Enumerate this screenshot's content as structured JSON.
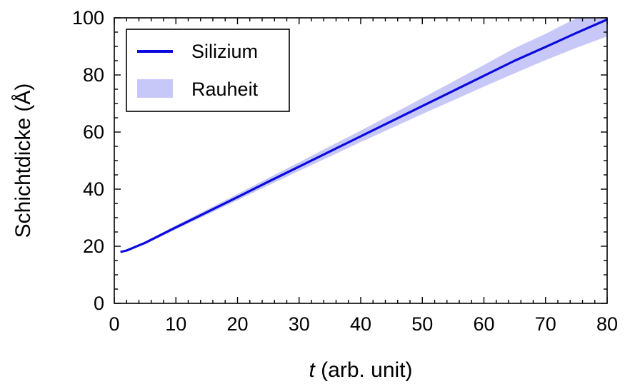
{
  "chart_data": {
    "type": "line",
    "title": "",
    "xlabel_var": "t",
    "xlabel_rest": " (arb. unit)",
    "ylabel": "Schichtdicke (Å)",
    "xlim": [
      0,
      80
    ],
    "ylim": [
      0,
      100
    ],
    "xticks": [
      0,
      10,
      20,
      30,
      40,
      50,
      60,
      70,
      80
    ],
    "yticks": [
      0,
      20,
      40,
      60,
      80,
      100
    ],
    "x_minor_step": 2,
    "y_minor_step": 5,
    "grid": false,
    "legend_position": "top-left",
    "colors": {
      "line": "#0a0adc",
      "band": "#c8c8f8",
      "axis": "#000000"
    },
    "series": [
      {
        "name": "Silizium",
        "kind": "line",
        "x": [
          1,
          2,
          5,
          10,
          15,
          20,
          25,
          30,
          35,
          40,
          45,
          50,
          55,
          60,
          65,
          70,
          75,
          80
        ],
        "y": [
          18,
          18.5,
          21.2,
          26.6,
          31.9,
          37.2,
          42.6,
          47.9,
          53.2,
          58.5,
          63.8,
          69.1,
          74.4,
          79.7,
          85.0,
          89.8,
          94.7,
          99.4
        ]
      },
      {
        "name": "Rauheit",
        "kind": "band",
        "x": [
          1,
          2,
          5,
          10,
          15,
          20,
          25,
          30,
          35,
          40,
          45,
          50,
          55,
          60,
          65,
          70,
          75,
          80
        ],
        "lower": [
          17.8,
          18.2,
          20.7,
          25.9,
          31.0,
          36.1,
          41.3,
          46.4,
          51.4,
          56.5,
          61.4,
          66.3,
          71.1,
          75.9,
          80.6,
          85.2,
          89.5,
          93.5
        ],
        "upper": [
          18.2,
          18.8,
          21.7,
          27.3,
          32.8,
          38.3,
          43.9,
          49.4,
          55.0,
          60.5,
          66.2,
          71.9,
          77.7,
          83.5,
          89.4,
          94.4,
          99.9,
          105.3
        ]
      }
    ]
  }
}
